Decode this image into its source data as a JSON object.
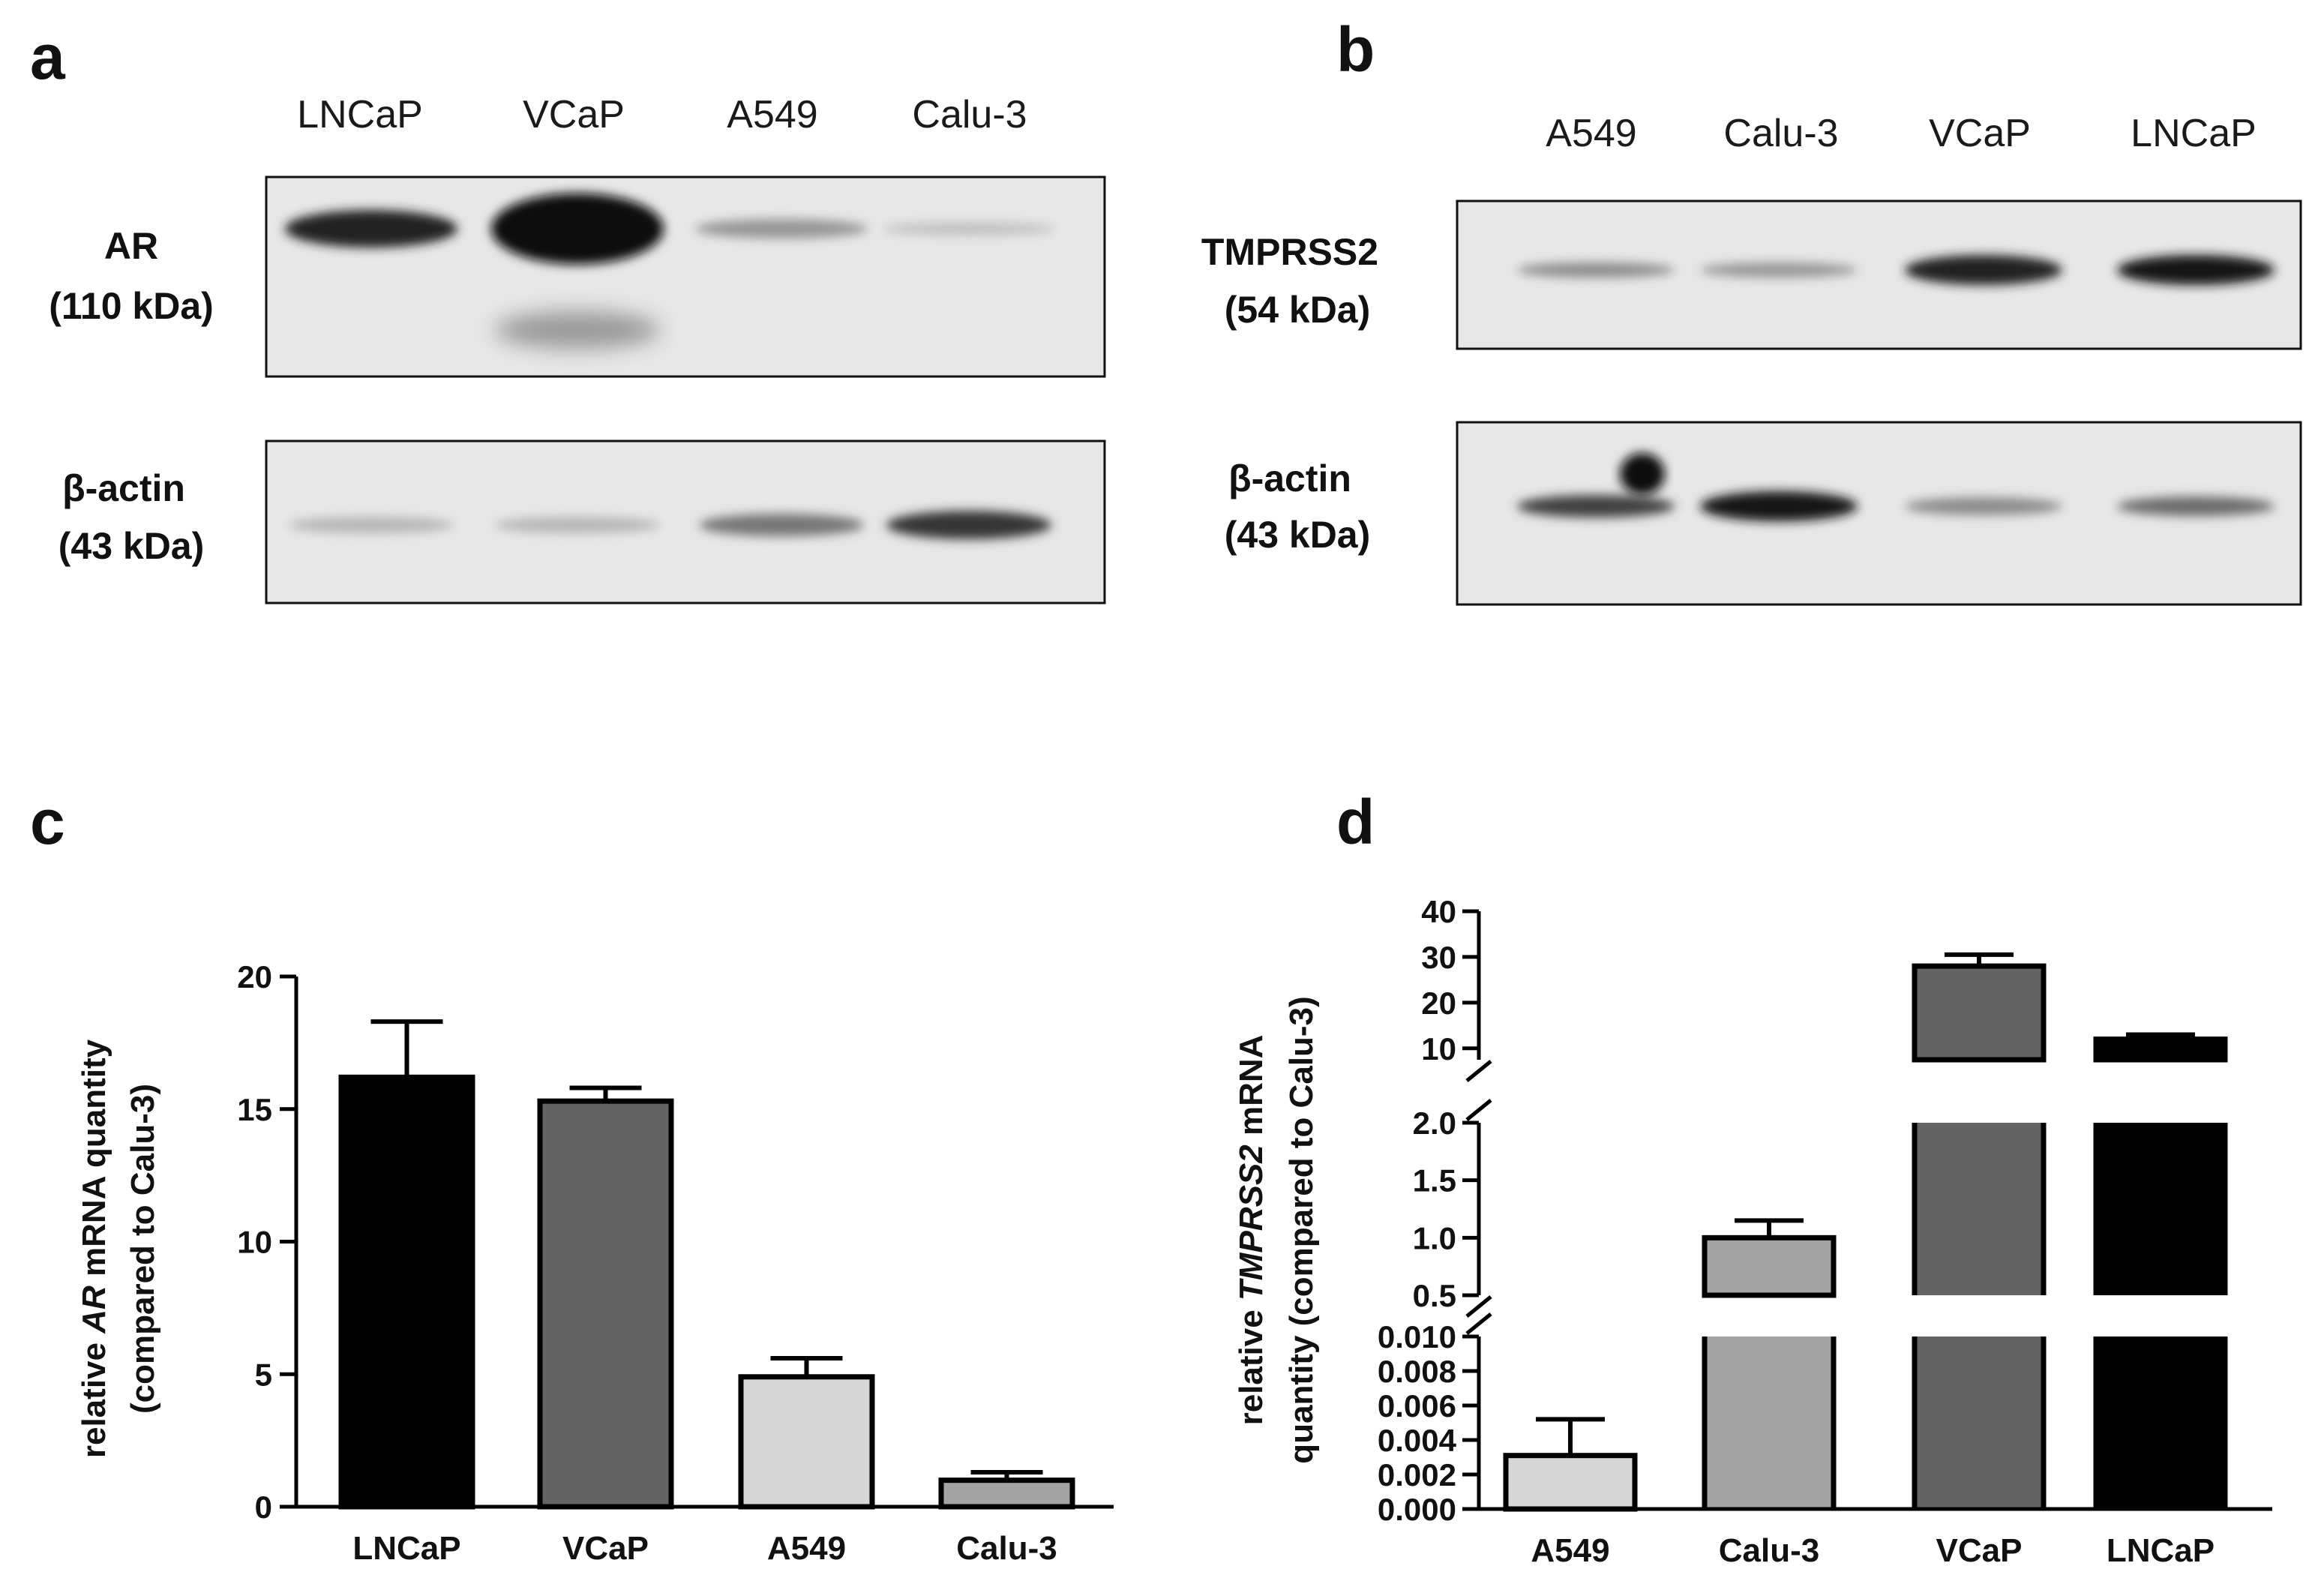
{
  "panels": {
    "a": {
      "letter": "a",
      "lanes": [
        "LNCaP",
        "VCaP",
        "A549",
        "Calu-3"
      ],
      "blots": [
        {
          "protein": "AR",
          "size": "(110 kDa)",
          "intensities": [
            0.9,
            1.0,
            0.35,
            0.15
          ]
        },
        {
          "protein": "β-actin",
          "size": "(43 kDa)",
          "intensities": [
            0.2,
            0.2,
            0.5,
            0.8
          ]
        }
      ]
    },
    "b": {
      "letter": "b",
      "lanes": [
        "A549",
        "Calu-3",
        "VCaP",
        "LNCaP"
      ],
      "blots": [
        {
          "protein": "TMPRSS2",
          "size": "(54 kDa)",
          "intensities": [
            0.4,
            0.35,
            0.9,
            0.95
          ]
        },
        {
          "protein": "β-actin",
          "size": "(43 kDa)",
          "intensities": [
            0.75,
            0.95,
            0.4,
            0.55
          ]
        }
      ]
    },
    "c": {
      "letter": "c"
    },
    "d": {
      "letter": "d"
    }
  },
  "chart_data": [
    {
      "panel": "c",
      "type": "bar",
      "categories": [
        "LNCaP",
        "VCaP",
        "A549",
        "Calu-3"
      ],
      "values": [
        16.2,
        15.3,
        4.9,
        1.0
      ],
      "errors": [
        2.1,
        0.5,
        0.7,
        0.3
      ],
      "colors": [
        "#000000",
        "#636363",
        "#d6d6d6",
        "#a3a3a3"
      ],
      "ylabel_pre": "relative ",
      "ylabel_italic": "AR",
      "ylabel_post": " mRNA quantity",
      "ylabel_line2": "(compared to Calu-3)",
      "ylim": [
        0,
        20
      ],
      "yticks": [
        0,
        5,
        10,
        15,
        20
      ],
      "ytick_labels": [
        "0",
        "5",
        "10",
        "15",
        "20"
      ]
    },
    {
      "panel": "d",
      "type": "bar",
      "categories": [
        "A549",
        "Calu-3",
        "VCaP",
        "LNCaP"
      ],
      "values": [
        0.0031,
        1.0,
        28.0,
        12.0
      ],
      "errors": [
        0.0021,
        0.15,
        2.5,
        1.0
      ],
      "colors": [
        "#d6d6d6",
        "#a3a3a3",
        "#636363",
        "#000000"
      ],
      "ylabel_pre": "relative ",
      "ylabel_italic": "TMPRSS2",
      "ylabel_post": " mRNA",
      "ylabel_line2": "quantity (compared to Calu-3)",
      "broken_axis": true,
      "segments": [
        {
          "range": [
            0,
            0.01
          ],
          "ticks": [
            0,
            0.002,
            0.004,
            0.006,
            0.008,
            0.01
          ],
          "tick_labels": [
            "0.000",
            "0.002",
            "0.004",
            "0.006",
            "0.008",
            "0.010"
          ]
        },
        {
          "range": [
            0.5,
            2.0
          ],
          "ticks": [
            0.5,
            1.0,
            1.5,
            2.0
          ],
          "tick_labels": [
            "0.5",
            "1.0",
            "1.5",
            "2.0"
          ]
        },
        {
          "range": [
            7.5,
            40
          ],
          "ticks": [
            10,
            20,
            30,
            40
          ],
          "tick_labels": [
            "10",
            "20",
            "30",
            "40"
          ]
        }
      ]
    }
  ]
}
